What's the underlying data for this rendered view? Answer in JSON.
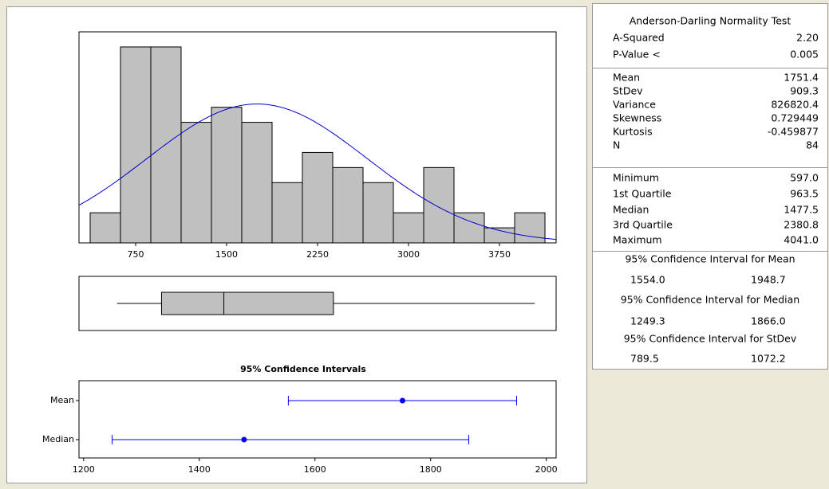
{
  "chart_data": [
    {
      "type": "histogram",
      "bins": [
        375,
        625,
        875,
        1125,
        1375,
        1625,
        1875,
        2125,
        2375,
        2625,
        2875,
        3125,
        3375,
        3625,
        3875,
        4125
      ],
      "values": [
        2,
        13,
        13,
        8,
        9,
        8,
        4,
        6,
        5,
        4,
        2,
        5,
        2,
        1,
        2
      ],
      "color": "#c0c0c0",
      "xlim": [
        283,
        4217
      ],
      "xticks": [
        750,
        1500,
        2250,
        3000,
        3750
      ],
      "ylim": [
        0,
        14
      ],
      "normal_fit": {
        "mean": 1751.4,
        "stdev": 909.3,
        "n": 84,
        "color": "#0000cc"
      }
    },
    {
      "type": "boxplot",
      "min": 597.0,
      "q1": 963.5,
      "median": 1477.5,
      "q3": 2380.8,
      "max": 4041.0,
      "color": "#c0c0c0",
      "xlim": [
        283,
        4217
      ]
    },
    {
      "type": "interval",
      "title": "95% Confidence Intervals",
      "categories": [
        "Mean",
        "Median"
      ],
      "values": [
        1751.4,
        1477.5
      ],
      "lower": [
        1554.0,
        1249.3
      ],
      "upper": [
        1948.7,
        1866.0
      ],
      "color": "#0000ff",
      "xlim": [
        1192,
        2017
      ],
      "xticks": [
        1200,
        1400,
        1600,
        1800,
        2000
      ]
    }
  ],
  "summary": {
    "sections": [
      {
        "header": "Anderson-Darling Normality Test",
        "rows": [
          [
            "A-Squared",
            "2.20"
          ],
          [
            "P-Value <",
            "0.005"
          ]
        ]
      },
      {
        "rows": [
          [
            "Mean",
            "1751.4"
          ],
          [
            "StDev",
            "909.3"
          ],
          [
            "Variance",
            "826820.4"
          ],
          [
            "Skewness",
            "0.729449"
          ],
          [
            "Kurtosis",
            "-0.459877"
          ],
          [
            "N",
            "84"
          ]
        ]
      },
      {
        "rows": [
          [
            "Minimum",
            "597.0"
          ],
          [
            "1st Quartile",
            "963.5"
          ],
          [
            "Median",
            "1477.5"
          ],
          [
            "3rd Quartile",
            "2380.8"
          ],
          [
            "Maximum",
            "4041.0"
          ]
        ]
      },
      {
        "header": "95% Confidence Interval for Mean",
        "rows": [
          [
            "1554.0",
            "1948.7"
          ]
        ]
      },
      {
        "header": "95% Confidence Interval for Median",
        "rows": [
          [
            "1249.3",
            "1866.0"
          ]
        ]
      },
      {
        "header": "95% Confidence Interval for StDev",
        "rows": [
          [
            "789.5",
            "1072.2"
          ]
        ]
      }
    ]
  }
}
